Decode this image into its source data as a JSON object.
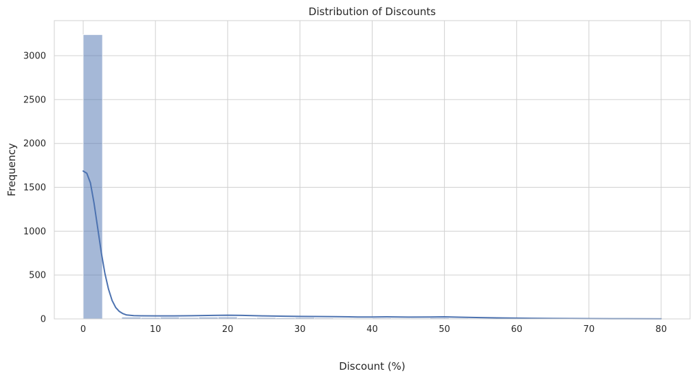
{
  "chart_data": {
    "type": "bar",
    "title": "Distribution of Discounts",
    "xlabel": "Discount (%)",
    "ylabel": "Frequency",
    "xlim": [
      -4.0,
      84.0
    ],
    "ylim": [
      0,
      3400
    ],
    "xticks": [
      0,
      10,
      20,
      30,
      40,
      50,
      60,
      70,
      80
    ],
    "yticks": [
      0,
      500,
      1000,
      1500,
      2000,
      2500,
      3000
    ],
    "grid": true,
    "bin_width": 2.67,
    "bins": [
      {
        "x0": 0.0,
        "x1": 2.67,
        "count": 3240
      },
      {
        "x0": 2.67,
        "x1": 5.33,
        "count": 0
      },
      {
        "x0": 5.33,
        "x1": 8.0,
        "count": 20
      },
      {
        "x0": 8.0,
        "x1": 10.67,
        "count": 15
      },
      {
        "x0": 10.67,
        "x1": 13.33,
        "count": 20
      },
      {
        "x0": 13.33,
        "x1": 16.0,
        "count": 15
      },
      {
        "x0": 16.0,
        "x1": 18.67,
        "count": 20
      },
      {
        "x0": 18.67,
        "x1": 21.33,
        "count": 22
      },
      {
        "x0": 21.33,
        "x1": 24.0,
        "count": 12
      },
      {
        "x0": 24.0,
        "x1": 26.67,
        "count": 15
      },
      {
        "x0": 26.67,
        "x1": 29.33,
        "count": 12
      },
      {
        "x0": 29.33,
        "x1": 32.0,
        "count": 15
      },
      {
        "x0": 32.0,
        "x1": 34.67,
        "count": 10
      },
      {
        "x0": 34.67,
        "x1": 37.33,
        "count": 8
      },
      {
        "x0": 37.33,
        "x1": 40.0,
        "count": 8
      },
      {
        "x0": 40.0,
        "x1": 42.67,
        "count": 10
      },
      {
        "x0": 42.67,
        "x1": 45.33,
        "count": 8
      },
      {
        "x0": 45.33,
        "x1": 48.0,
        "count": 8
      },
      {
        "x0": 48.0,
        "x1": 50.67,
        "count": 12
      },
      {
        "x0": 50.67,
        "x1": 53.33,
        "count": 8
      },
      {
        "x0": 53.33,
        "x1": 56.0,
        "count": 6
      },
      {
        "x0": 56.0,
        "x1": 58.67,
        "count": 5
      },
      {
        "x0": 58.67,
        "x1": 61.33,
        "count": 8
      },
      {
        "x0": 61.33,
        "x1": 64.0,
        "count": 4
      },
      {
        "x0": 64.0,
        "x1": 66.67,
        "count": 3
      },
      {
        "x0": 66.67,
        "x1": 69.33,
        "count": 2
      },
      {
        "x0": 69.33,
        "x1": 72.0,
        "count": 2
      },
      {
        "x0": 72.0,
        "x1": 74.67,
        "count": 2
      },
      {
        "x0": 74.67,
        "x1": 77.33,
        "count": 2
      },
      {
        "x0": 77.33,
        "x1": 80.0,
        "count": 2
      }
    ],
    "kde": {
      "x": [
        0,
        0.5,
        1,
        1.5,
        2,
        2.5,
        3,
        3.5,
        4,
        4.5,
        5,
        5.5,
        6,
        7,
        8,
        10,
        12,
        15,
        18,
        20,
        22,
        25,
        28,
        30,
        32,
        35,
        38,
        40,
        42,
        45,
        48,
        50,
        52,
        55,
        58,
        60,
        62,
        65,
        70,
        75,
        80
      ],
      "y": [
        1685,
        1660,
        1550,
        1320,
        1040,
        760,
        520,
        340,
        210,
        130,
        85,
        60,
        45,
        37,
        35,
        34,
        34,
        36,
        40,
        42,
        40,
        34,
        30,
        28,
        27,
        25,
        22,
        22,
        23,
        21,
        22,
        23,
        20,
        15,
        11,
        9,
        7,
        5,
        3,
        2,
        1
      ]
    },
    "colors": {
      "bar_fill": "#4c72b0",
      "bar_opacity": 0.5,
      "kde_line": "#4c72b0",
      "grid": "#d0d0d0",
      "background": "#ffffff"
    }
  }
}
